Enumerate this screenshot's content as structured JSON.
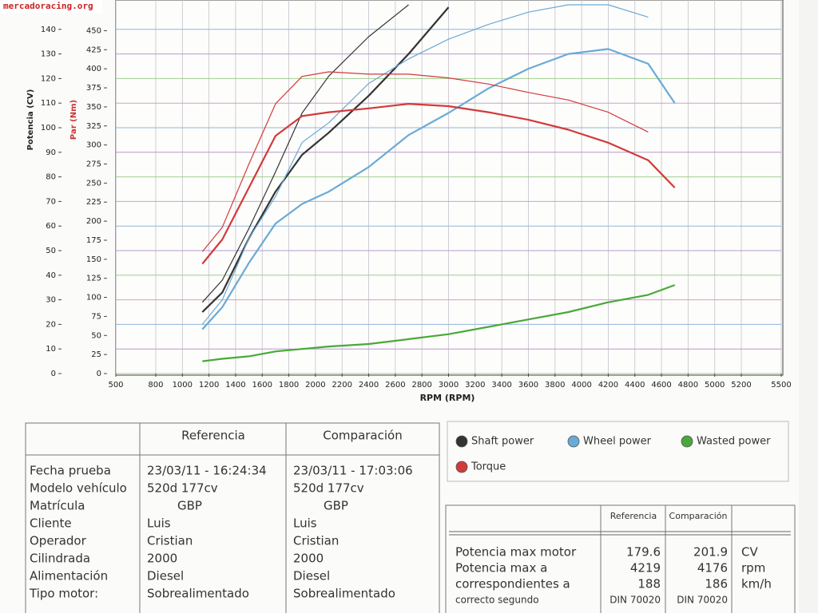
{
  "document": {
    "watermark": "mercadoracing.org",
    "info_table": {
      "headers": [
        "Referencia",
        "Comparación"
      ],
      "rows": [
        [
          "Fecha prueba",
          "23/03/11 - 16:24:34",
          "23/03/11 - 17:03:06"
        ],
        [
          "Modelo vehículo",
          "520d 177cv",
          "520d 177cv"
        ],
        [
          "Matrícula",
          "GBP",
          "GBP"
        ],
        [
          "Cliente",
          "Luis",
          "Luis"
        ],
        [
          "Operador",
          "Cristian",
          "Cristian"
        ],
        [
          "Cilindrada",
          "2000",
          "2000"
        ],
        [
          "Alimentación",
          "Diesel",
          "Diesel"
        ],
        [
          "Tipo motor:",
          "Sobrealimentado",
          "Sobrealimentado"
        ]
      ]
    },
    "summary_table": {
      "headers": [
        "Referencia",
        "Comparación"
      ],
      "rows": [
        [
          "Potencia max motor",
          "179.6",
          "201.9",
          "CV"
        ],
        [
          "Potencia max a",
          "4219",
          "4176",
          "rpm"
        ],
        [
          "correspondientes a",
          "188",
          "186",
          "km/h"
        ],
        [
          "correcto segundo",
          "DIN 70020",
          "DIN 70020"
        ]
      ]
    }
  },
  "chart_data": {
    "type": "line",
    "ylabel": "Potencia (CV)",
    "y2label": "Par (Nm)",
    "xlabel": "RPM (RPM)",
    "x": [
      1150,
      1300,
      1500,
      1700,
      1900,
      2100,
      2400,
      2700,
      3000,
      3300,
      3600,
      3900,
      4200,
      4500,
      4700
    ],
    "xlim": [
      500,
      5500
    ],
    "xticks": [
      500,
      800,
      1000,
      1200,
      1400,
      1600,
      1800,
      2000,
      2200,
      2400,
      2600,
      2800,
      3000,
      3200,
      3400,
      3600,
      3800,
      4000,
      4200,
      4400,
      4600,
      4800,
      5000,
      5200,
      5500
    ],
    "ylim": [
      0,
      150
    ],
    "yticks": [
      0,
      10,
      20,
      30,
      40,
      50,
      60,
      70,
      80,
      90,
      100,
      110,
      120,
      130,
      140
    ],
    "y2lim": [
      0,
      484
    ],
    "y2ticks": [
      0,
      25,
      50,
      75,
      100,
      125,
      150,
      175,
      200,
      225,
      250,
      275,
      300,
      325,
      350,
      375,
      400,
      425,
      450
    ],
    "grid": true,
    "series": [
      {
        "name": "Shaft power",
        "color": "#333333",
        "runs": [
          {
            "values": [
              25,
              33,
              55,
              74,
              89,
              98,
              113,
              130,
              149,
              null,
              null,
              null,
              null,
              null,
              null
            ]
          },
          {
            "values": [
              29,
              38,
              59,
              82,
              106,
              121,
              137,
              150,
              null,
              null,
              null,
              null,
              null,
              null,
              null
            ]
          }
        ]
      },
      {
        "name": "Wheel power",
        "color": "#6aaad6",
        "runs": [
          {
            "values": [
              18,
              27,
              45,
              61,
              69,
              74,
              84,
              97,
              106,
              116,
              124,
              130,
              132,
              126,
              110
            ]
          },
          {
            "values": [
              20,
              30,
              55,
              72,
              94,
              102,
              118,
              128,
              136,
              142,
              147,
              150,
              150,
              145,
              null
            ]
          }
        ]
      },
      {
        "name": "Torque",
        "color": "#d23a3a",
        "axis": "y2",
        "runs": [
          {
            "values": [
              144,
              176,
              244,
              312,
              338,
              343,
              348,
              354,
              351,
              343,
              333,
              320,
              303,
              280,
              244
            ]
          },
          {
            "values": [
              160,
              192,
              275,
              354,
              390,
              396,
              393,
              393,
              388,
              380,
              369,
              359,
              343,
              317,
              null
            ]
          }
        ]
      },
      {
        "name": "Wasted power",
        "color": "#4aa83a",
        "runs": [
          {
            "values": [
              5,
              6,
              7,
              9,
              10,
              11,
              12,
              14,
              16,
              19,
              22,
              25,
              29,
              32,
              36
            ]
          }
        ]
      }
    ]
  }
}
